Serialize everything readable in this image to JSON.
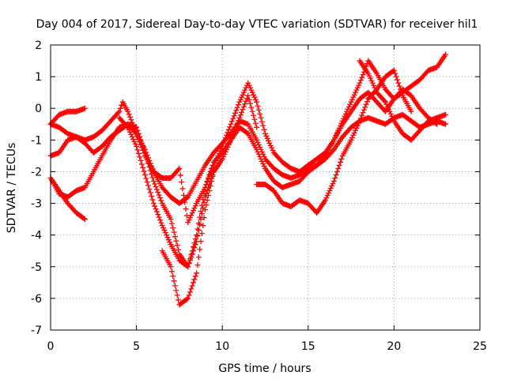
{
  "chart_data": {
    "type": "scatter",
    "title": "Day 004 of 2017, Sidereal Day-to-day VTEC variation (SDTVAR) for receiver hil1",
    "xlabel": "GPS time / hours",
    "ylabel": "SDTVAR / TECUs",
    "xlim": [
      0,
      25
    ],
    "ylim": [
      -7,
      2
    ],
    "xticks": [
      0,
      5,
      10,
      15,
      20,
      25
    ],
    "yticks": [
      -7,
      -6,
      -5,
      -4,
      -3,
      -2,
      -1,
      0,
      1,
      2
    ],
    "grid": true,
    "marker": "+",
    "color": "#ff0000",
    "series": [
      {
        "x": [
          0.0,
          0.5,
          1.0,
          1.5,
          2.0
        ],
        "values": [
          -0.5,
          -0.2,
          -0.1,
          -0.1,
          0.0
        ]
      },
      {
        "x": [
          0.0,
          0.5,
          1.0,
          1.5,
          2.0,
          2.5,
          3.0,
          3.5,
          4.0,
          4.2,
          4.5,
          5.0,
          5.5,
          6.0,
          6.5,
          7.0,
          7.5,
          8.0,
          8.5,
          9.0,
          9.5,
          10.0,
          10.5,
          11.0,
          11.5,
          12.0,
          12.5,
          13.0,
          13.5,
          14.0,
          14.5,
          15.0,
          15.5,
          16.0,
          16.5,
          17.0,
          17.5,
          18.0,
          18.5,
          19.0,
          19.5,
          20.0,
          20.5,
          21.0,
          21.5,
          22.0,
          22.5,
          23.0
        ],
        "values": [
          -0.5,
          -0.6,
          -0.8,
          -0.9,
          -1.0,
          -0.9,
          -0.7,
          -0.4,
          -0.1,
          0.2,
          -0.1,
          -0.8,
          -1.5,
          -2.0,
          -2.2,
          -2.2,
          -1.9,
          -3.6,
          -3.0,
          -2.5,
          -1.8,
          -1.2,
          -0.5,
          0.2,
          0.8,
          0.2,
          -0.8,
          -1.4,
          -1.7,
          -1.9,
          -2.0,
          -1.8,
          -1.6,
          -1.4,
          -1.0,
          -0.4,
          0.2,
          0.8,
          1.5,
          1.1,
          0.6,
          0.3,
          0.5,
          0.7,
          0.9,
          1.2,
          1.3,
          1.7
        ]
      },
      {
        "x": [
          0.0,
          0.5,
          1.0,
          1.5,
          2.0,
          2.5,
          3.0,
          3.5,
          4.0,
          4.5,
          5.0,
          5.5,
          6.0,
          6.5,
          7.0,
          7.5,
          8.0,
          8.5,
          9.0,
          9.5,
          10.0,
          10.5,
          11.0,
          11.5,
          12.0,
          12.5,
          13.0,
          13.5,
          14.0,
          14.5,
          15.0,
          15.5,
          16.0,
          16.5,
          17.0,
          17.5,
          18.0,
          18.5,
          19.0,
          19.5,
          20.0,
          20.5,
          21.0,
          21.5,
          22.0,
          22.5,
          23.0
        ],
        "values": [
          -1.5,
          -1.4,
          -1.0,
          -0.9,
          -1.1,
          -1.4,
          -1.2,
          -0.9,
          -0.7,
          -0.5,
          -0.8,
          -1.3,
          -2.0,
          -2.5,
          -2.8,
          -3.0,
          -2.8,
          -2.3,
          -1.8,
          -1.4,
          -1.1,
          -0.8,
          -0.4,
          -0.5,
          -1.0,
          -1.6,
          -1.9,
          -2.1,
          -2.2,
          -2.1,
          -1.9,
          -1.8,
          -1.6,
          -1.3,
          -0.9,
          -0.6,
          -0.4,
          -0.3,
          -0.4,
          -0.5,
          -0.3,
          -0.2,
          -0.4,
          -0.6,
          -0.5,
          -0.4,
          -0.5
        ]
      },
      {
        "x": [
          0.0,
          0.5,
          1.0,
          1.5,
          2.0,
          2.5,
          3.0,
          3.5,
          4.0,
          4.5,
          5.0,
          5.5,
          6.0,
          6.5,
          7.0,
          7.5,
          8.0,
          8.5,
          9.0,
          9.5,
          10.0,
          10.5,
          11.0,
          11.5,
          12.0,
          12.5,
          13.0,
          13.5,
          14.0,
          14.5,
          15.0,
          15.5,
          16.0,
          16.5,
          17.0,
          17.5,
          18.0,
          18.5,
          19.0,
          19.5,
          20.0,
          20.5,
          21.0,
          21.5,
          22.0,
          22.5
        ],
        "values": [
          -2.2,
          -2.7,
          -2.8,
          -2.6,
          -2.5,
          -2.0,
          -1.5,
          -1.0,
          -0.6,
          -0.5,
          -0.6,
          -1.4,
          -2.3,
          -3.0,
          -3.5,
          -4.6,
          -5.0,
          -4.0,
          -2.5,
          -1.7,
          -1.4,
          -1.0,
          -0.6,
          -0.8,
          -1.3,
          -1.9,
          -2.3,
          -2.5,
          -2.4,
          -2.3,
          -2.0,
          -1.8,
          -1.5,
          -1.0,
          -0.5,
          -0.1,
          0.3,
          0.5,
          0.2,
          -0.1,
          0.3,
          0.6,
          0.4,
          0.0,
          -0.3,
          -0.5
        ]
      },
      {
        "x": [
          0.0,
          0.5,
          1.0,
          1.5,
          2.0
        ],
        "values": [
          -2.2,
          -2.6,
          -3.0,
          -3.3,
          -3.5
        ]
      },
      {
        "x": [
          4.0,
          4.5,
          5.0,
          5.5,
          6.0,
          6.5,
          7.0,
          7.5,
          8.0,
          8.5,
          9.0,
          9.5,
          10.0,
          10.5,
          11.0,
          11.5,
          12.0
        ],
        "values": [
          -0.3,
          -0.6,
          -1.2,
          -2.1,
          -3.0,
          -3.7,
          -4.3,
          -4.8,
          -5.0,
          -4.2,
          -2.8,
          -2.0,
          -1.6,
          -1.0,
          -0.3,
          0.4,
          -0.6
        ]
      },
      {
        "x": [
          6.5,
          7.0,
          7.5,
          8.0,
          8.5,
          9.0,
          9.5,
          10.0
        ],
        "values": [
          -4.5,
          -5.0,
          -6.2,
          -6.0,
          -5.2,
          -3.2,
          -2.0,
          -1.6
        ]
      },
      {
        "x": [
          12.0,
          12.5,
          13.0,
          13.5,
          14.0,
          14.5,
          15.0,
          15.5,
          16.0,
          16.5,
          17.0,
          17.5,
          18.0,
          18.5,
          19.0,
          19.5,
          20.0,
          20.5,
          21.0
        ],
        "values": [
          -2.4,
          -2.4,
          -2.6,
          -3.0,
          -3.1,
          -2.9,
          -3.0,
          -3.3,
          -2.9,
          -2.3,
          -1.5,
          -1.0,
          -0.4,
          0.3,
          0.6,
          1.0,
          1.2,
          0.4,
          -0.1
        ]
      },
      {
        "x": [
          18.0,
          18.5,
          19.0,
          19.5,
          20.0,
          20.5,
          21.0,
          21.5,
          22.0,
          22.5,
          23.0
        ],
        "values": [
          1.5,
          1.1,
          0.5,
          0.2,
          -0.4,
          -0.8,
          -1.0,
          -0.7,
          -0.4,
          -0.3,
          -0.2
        ]
      }
    ]
  }
}
